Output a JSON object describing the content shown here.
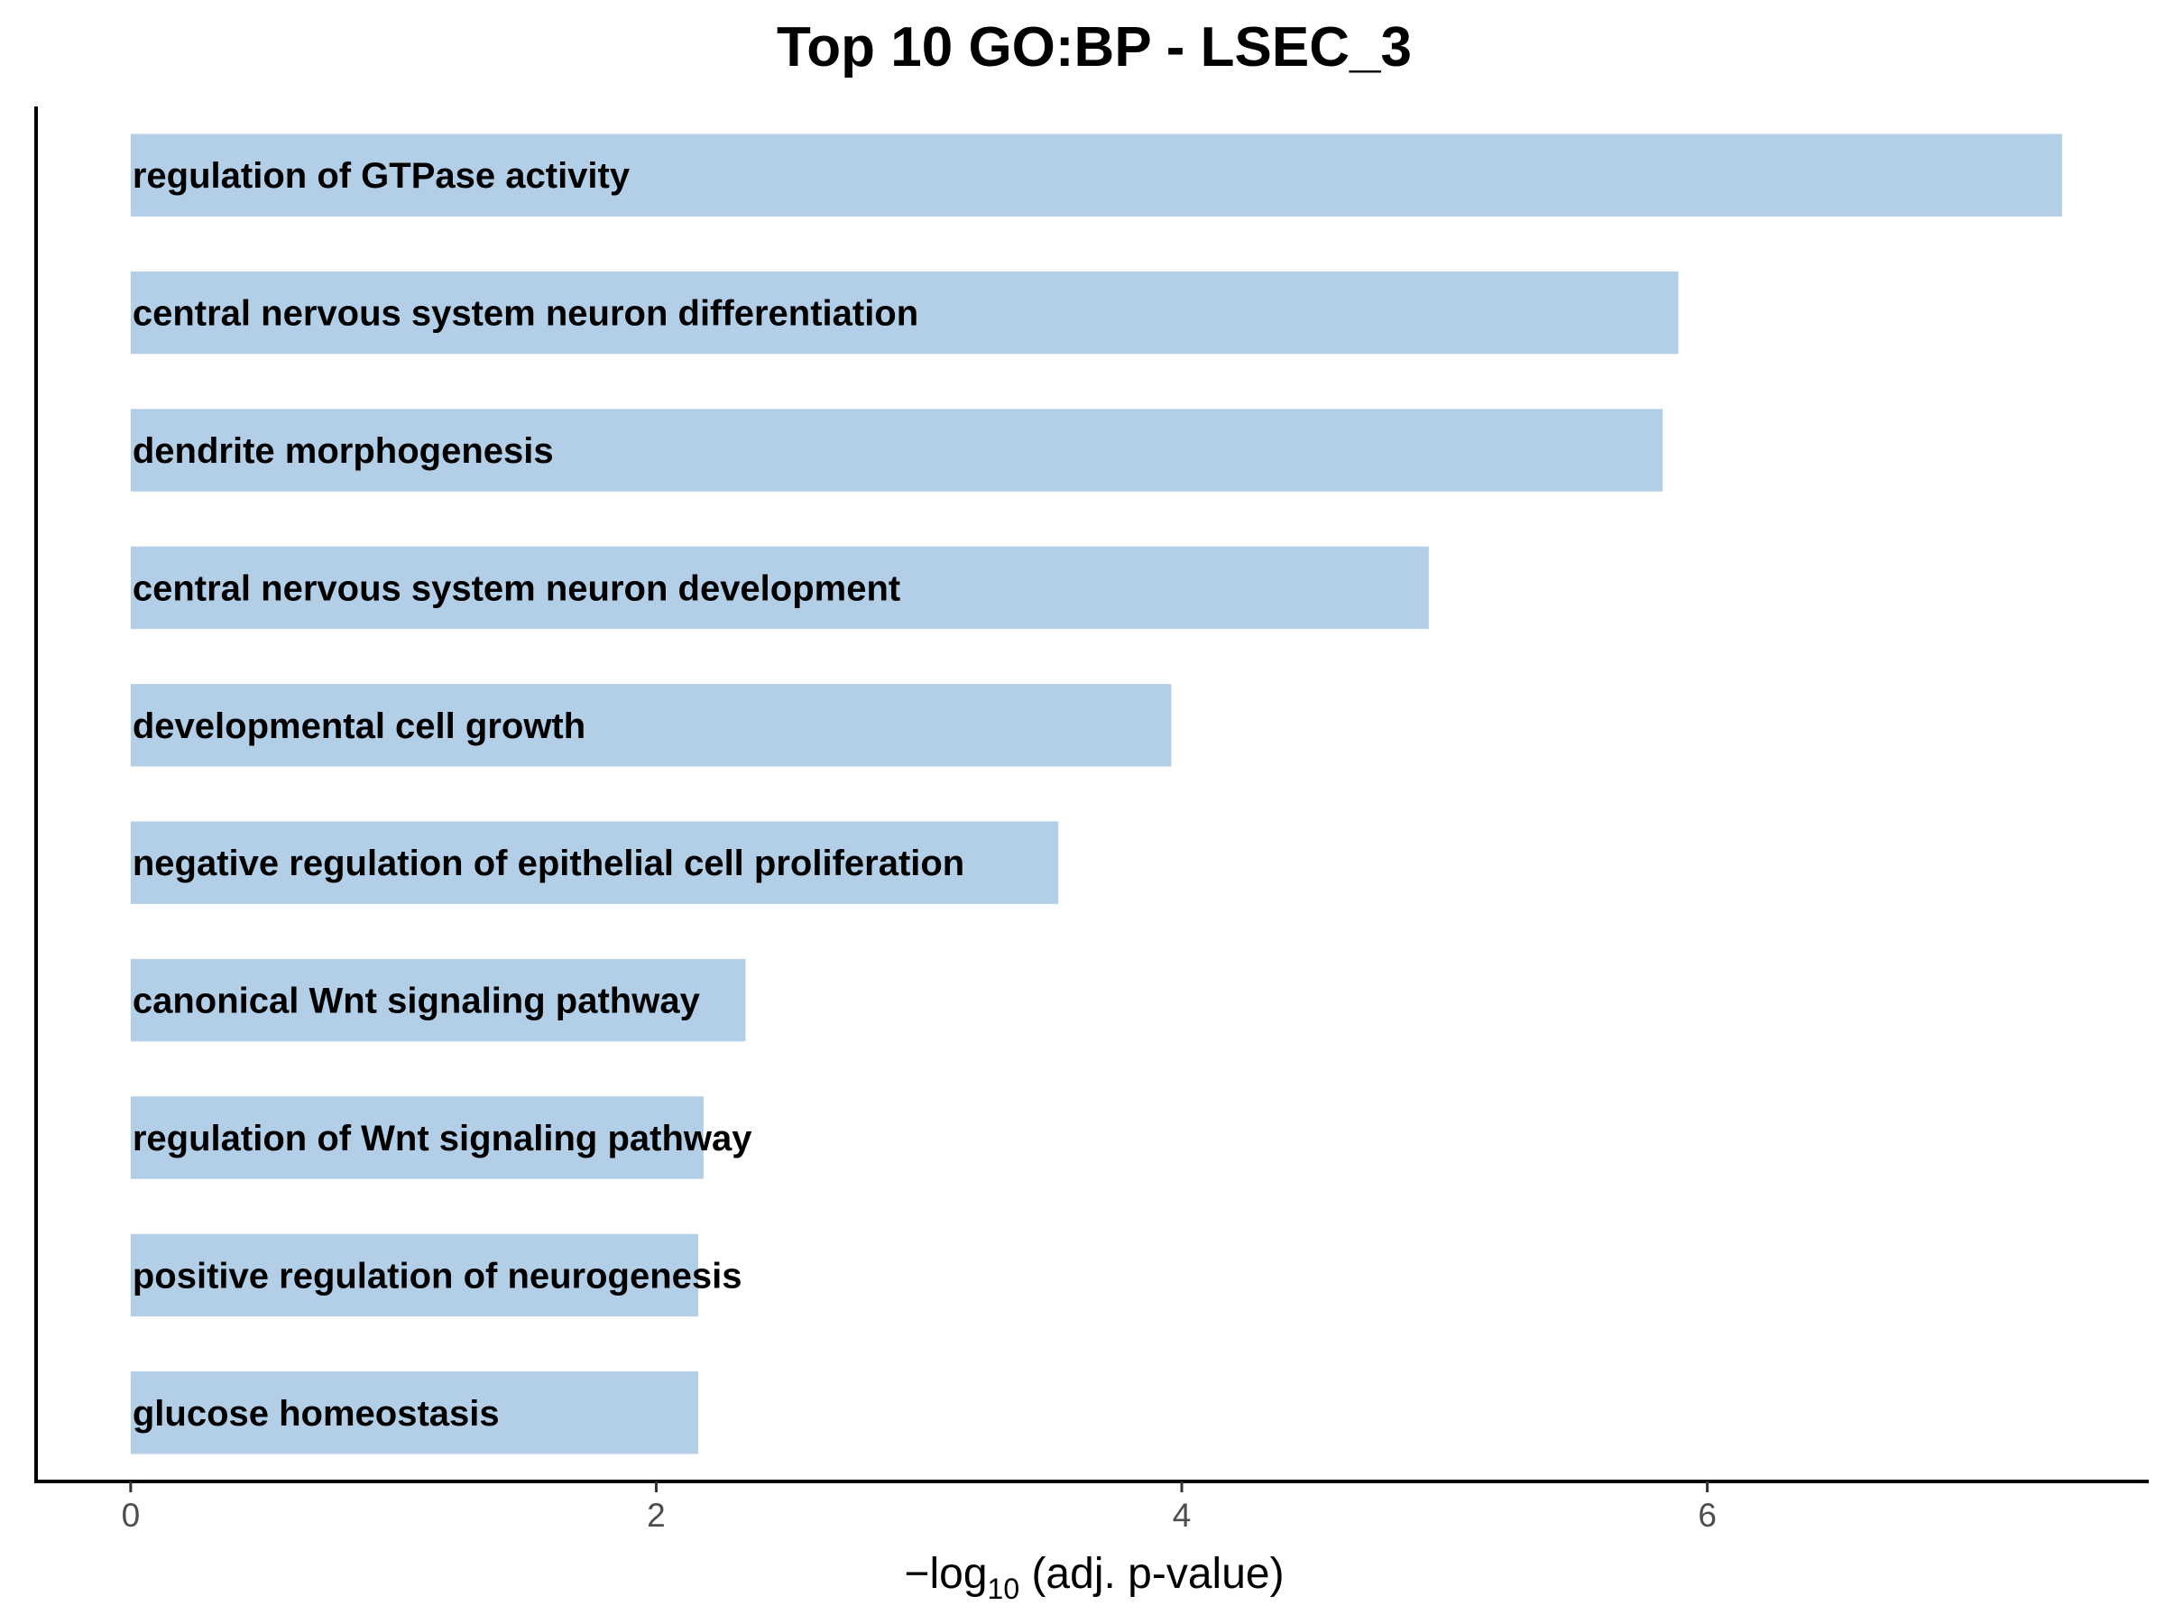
{
  "chart_data": {
    "type": "bar",
    "orientation": "horizontal",
    "title": "Top 10 GO:BP - LSEC_3",
    "xlabel": {
      "prefix": "−log",
      "subscript": "10",
      "suffix": " (adj. p-value)"
    },
    "ylabel": "",
    "categories": [
      "regulation of GTPase activity",
      "central nervous system neuron differentiation",
      "dendrite morphogenesis",
      "central nervous system neuron development",
      "developmental cell growth",
      "negative regulation of epithelial cell proliferation",
      "canonical Wnt signaling pathway",
      "regulation of Wnt signaling pathway",
      "positive regulation of neurogenesis",
      "glucose homeostasis"
    ],
    "values": [
      7.35,
      5.89,
      5.83,
      4.94,
      3.96,
      3.53,
      2.34,
      2.18,
      2.16,
      2.16
    ],
    "xlim": [
      -0.36,
      7.68
    ],
    "xticks": [
      0,
      2,
      4,
      6
    ],
    "grid": false,
    "legend": "none",
    "bar_color": "#b3cfe8"
  }
}
